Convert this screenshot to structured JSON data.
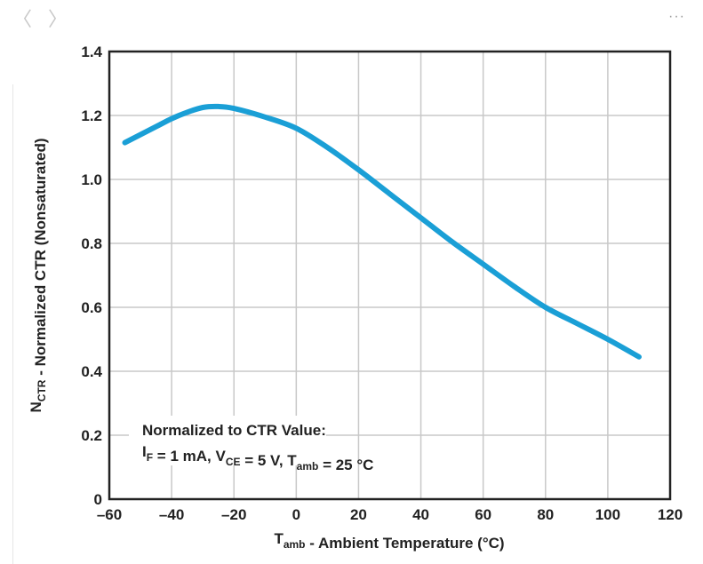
{
  "toolbar": {
    "back_icon": "chevron-left-icon",
    "forward_icon": "chevron-right-icon",
    "more_icon": "ellipsis-icon",
    "back": "〈",
    "forward": "〉",
    "more": "···"
  },
  "chart_data": {
    "type": "line",
    "title": "",
    "xlabel": {
      "main": "T",
      "sub": "amb",
      "rest": " - Ambient Temperature (°C)"
    },
    "ylabel": {
      "main": "N",
      "sub": "CTR",
      "rest": " - Normalized CTR (Nonsaturated)"
    },
    "xlim": [
      -60,
      120
    ],
    "ylim": [
      0,
      1.4
    ],
    "xticks": [
      "-60",
      "-40",
      "-20",
      "0",
      "20",
      "40",
      "60",
      "80",
      "100",
      "120"
    ],
    "yticks": [
      "0",
      "0.2",
      "0.4",
      "0.6",
      "0.8",
      "1.0",
      "1.2",
      "1.4"
    ],
    "grid": true,
    "line_color": "#1a9fd6",
    "annotation": {
      "line1": "Normalized to CTR Value:",
      "line2": [
        {
          "t": "I"
        },
        {
          "s": "F"
        },
        {
          "t": " = 1 mA, V"
        },
        {
          "s": "CE"
        },
        {
          "t": " = 5 V, T"
        },
        {
          "s": "amb"
        },
        {
          "t": " = 25 °C"
        }
      ]
    },
    "series": [
      {
        "x": [
          -55,
          -45,
          -40,
          -35,
          -30,
          -25,
          -20,
          -10,
          0,
          10,
          20,
          30,
          40,
          50,
          60,
          70,
          80,
          90,
          100,
          110
        ],
        "y": [
          1.115,
          1.165,
          1.19,
          1.21,
          1.225,
          1.228,
          1.222,
          1.195,
          1.16,
          1.1,
          1.03,
          0.955,
          0.88,
          0.805,
          0.735,
          0.665,
          0.6,
          0.55,
          0.5,
          0.445
        ]
      }
    ]
  }
}
